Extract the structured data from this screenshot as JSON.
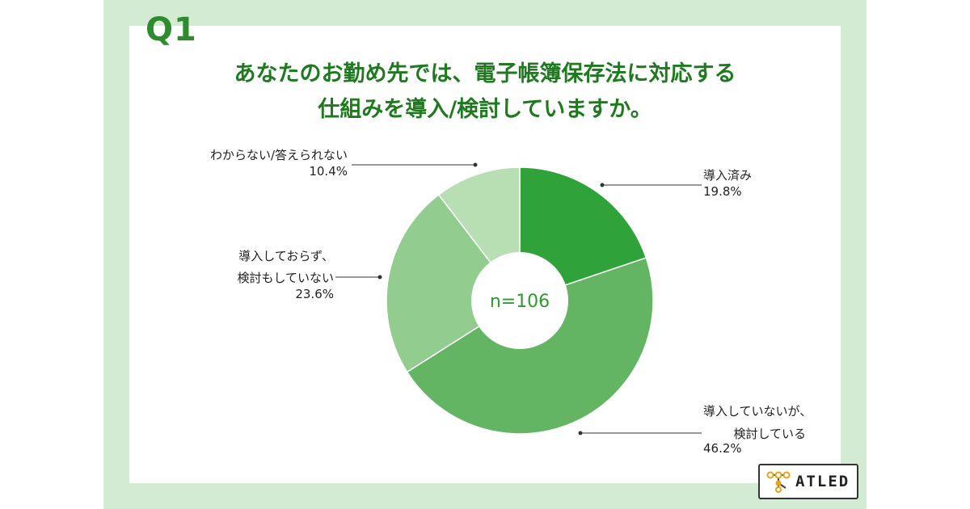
{
  "question_label": "Q1",
  "title_lines": [
    "あなたのお勤め先では、電子帳簿保存法に対応する",
    "仕組みを導入/検討していますか。"
  ],
  "chart_data": {
    "type": "pie",
    "donut": true,
    "center_label": "n=106",
    "slices": [
      {
        "label": "導入済み",
        "value": 19.8,
        "pct": "19.8%",
        "color": "#2fa23a"
      },
      {
        "label": "導入していないが、検討している",
        "value": 46.2,
        "pct": "46.2%",
        "color": "#63b563"
      },
      {
        "label": "導入しておらず、検討もしていない",
        "value": 23.6,
        "pct": "23.6%",
        "color": "#92cc8e"
      },
      {
        "label": "わからない/答えられない",
        "value": 10.4,
        "pct": "10.4%",
        "color": "#b7dfb3"
      }
    ]
  },
  "annotations": {
    "s0": {
      "lines": [
        "導入済み"
      ],
      "pct": "19.8%"
    },
    "s1": {
      "lines": [
        "導入していないが、",
        "検討している"
      ],
      "pct": "46.2%"
    },
    "s2": {
      "lines": [
        "導入しておらず、",
        "検討もしていない"
      ],
      "pct": "23.6%"
    },
    "s3": {
      "lines": [
        "わからない/答えられない"
      ],
      "pct": "10.4%"
    }
  },
  "logo": {
    "text": "ATLED",
    "colors": [
      "#e8a317",
      "#444444"
    ]
  },
  "colors": {
    "frame": "#d4ebd3",
    "title": "#1f7a1f",
    "accent": "#2e8b2e"
  }
}
